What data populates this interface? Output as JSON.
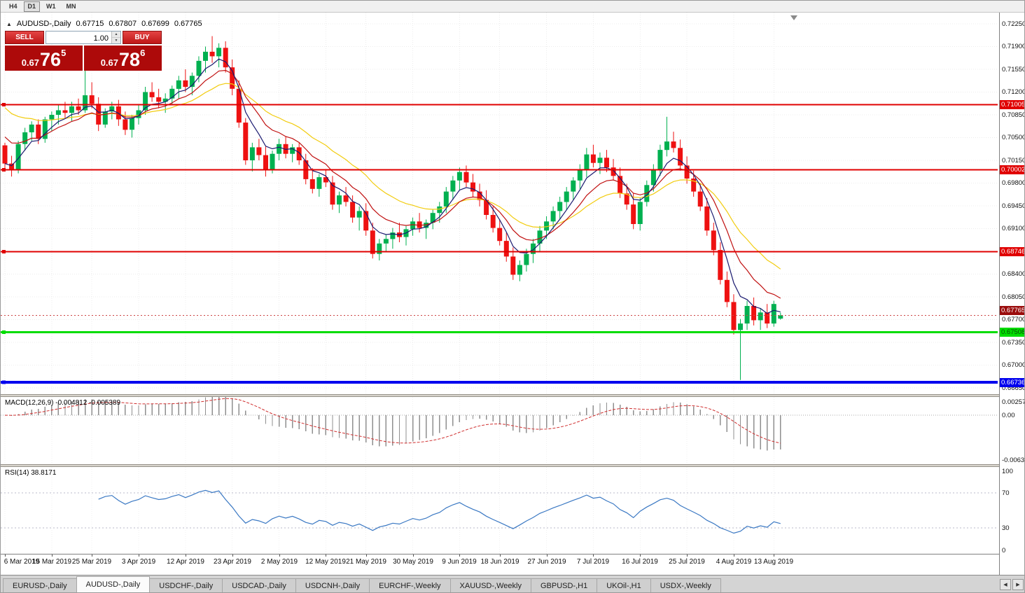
{
  "toolbar": {
    "timeframes": [
      {
        "label": "H4",
        "active": false
      },
      {
        "label": "D1",
        "active": true
      },
      {
        "label": "W1",
        "active": false
      },
      {
        "label": "MN",
        "active": false
      }
    ]
  },
  "chart_header": {
    "collapse_icon": "▲",
    "symbol": "AUDUSD-,Daily",
    "open": "0.67715",
    "high": "0.67807",
    "low": "0.67699",
    "close": "0.67765"
  },
  "trade_panel": {
    "sell_label": "SELL",
    "buy_label": "BUY",
    "volume": "1.00",
    "spin_up": "▲",
    "spin_down": "▼",
    "sell_price": {
      "base": "0.67",
      "big": "76",
      "sup": "5"
    },
    "buy_price": {
      "base": "0.67",
      "big": "78",
      "sup": "6"
    }
  },
  "price_scale": {
    "ticks": [
      "0.72250",
      "0.71900",
      "0.71550",
      "0.71200",
      "0.70850",
      "0.70500",
      "0.70150",
      "0.69800",
      "0.69450",
      "0.69100",
      "0.68750",
      "0.68400",
      "0.68050",
      "0.67700",
      "0.67350",
      "0.67000",
      "0.66650"
    ],
    "current": {
      "label": "0.67765",
      "price": 0.67765,
      "bg": "#9b0d0d",
      "text": "#ffffff"
    }
  },
  "indicators": {
    "macd": {
      "label": "MACD(12,26,9) -0.004812 -0.005389",
      "scale_max": "0.002574",
      "scale_zero": "0.00",
      "scale_min": "-0.006326"
    },
    "rsi": {
      "label": "RSI(14) 38.8171",
      "scale_labels": [
        {
          "v": 100,
          "text": "100"
        },
        {
          "v": 70,
          "text": "70"
        },
        {
          "v": 30,
          "text": "30"
        },
        {
          "v": 0,
          "text": "0"
        }
      ],
      "levels": [
        70,
        30
      ]
    }
  },
  "x_axis": {
    "labels": [
      {
        "text": "6 Mar 2019",
        "i": 0
      },
      {
        "text": "15 Mar 2019",
        "i": 7
      },
      {
        "text": "25 Mar 2019",
        "i": 13
      },
      {
        "text": "3 Apr 2019",
        "i": 20
      },
      {
        "text": "12 Apr 2019",
        "i": 27
      },
      {
        "text": "23 Apr 2019",
        "i": 34
      },
      {
        "text": "2 May 2019",
        "i": 41
      },
      {
        "text": "12 May 2019",
        "i": 48
      },
      {
        "text": "21 May 2019",
        "i": 54
      },
      {
        "text": "30 May 2019",
        "i": 61
      },
      {
        "text": "9 Jun 2019",
        "i": 68
      },
      {
        "text": "18 Jun 2019",
        "i": 74
      },
      {
        "text": "27 Jun 2019",
        "i": 81
      },
      {
        "text": "7 Jul 2019",
        "i": 88
      },
      {
        "text": "16 Jul 2019",
        "i": 95
      },
      {
        "text": "25 Jul 2019",
        "i": 102
      },
      {
        "text": "4 Aug 2019",
        "i": 109
      },
      {
        "text": "13 Aug 2019",
        "i": 115
      }
    ]
  },
  "tabs": [
    {
      "label": "EURUSD-,Daily",
      "active": false
    },
    {
      "label": "AUDUSD-,Daily",
      "active": true
    },
    {
      "label": "USDCHF-,Daily",
      "active": false
    },
    {
      "label": "USDCAD-,Daily",
      "active": false
    },
    {
      "label": "USDCNH-,Daily",
      "active": false
    },
    {
      "label": "EURCHF-,Weekly",
      "active": false
    },
    {
      "label": "XAUUSD-,Weekly",
      "active": false
    },
    {
      "label": "GBPUSD-,H1",
      "active": false
    },
    {
      "label": "UKOil-,H1",
      "active": false
    },
    {
      "label": "USDX-,Weekly",
      "active": false
    }
  ],
  "ui": {
    "tab_scroll_left": "◀",
    "tab_scroll_right": "▶"
  },
  "chart_data": {
    "type": "candlestick",
    "symbol": "AUDUSD",
    "timeframe": "Daily",
    "ohlc_current": {
      "open": 0.67715,
      "high": 0.67807,
      "low": 0.67699,
      "close": 0.67765
    },
    "style": {
      "up": "#00b050",
      "down": "#ee1111",
      "background": "#ffffff",
      "bid_line": "#cc4444"
    },
    "ma": [
      {
        "period": 20,
        "seed": 0.7105,
        "color": "#f2cc0f",
        "name": "slow"
      },
      {
        "period": 10,
        "seed": 0.706,
        "color": "#c01010",
        "name": "medium"
      },
      {
        "period": 5,
        "seed": 0.701,
        "color": "#1a1a70",
        "name": "fast"
      }
    ],
    "hlines": [
      {
        "price": 0.71005,
        "label": "0.71005",
        "color": "#e00000",
        "text": "#ffffff",
        "width": 2
      },
      {
        "price": 0.70002,
        "label": "0.70002",
        "color": "#e00000",
        "text": "#ffffff",
        "width": 2
      },
      {
        "price": 0.68746,
        "label": "0.68746",
        "color": "#e00000",
        "text": "#ffffff",
        "width": 2
      },
      {
        "price": 0.67508,
        "label": "0.67508",
        "color": "#00dd00",
        "text": "#074d07",
        "width": 3
      },
      {
        "price": 0.66736,
        "label": "0.66736",
        "color": "#0000ee",
        "text": "#ffffff",
        "width": 4
      }
    ],
    "macd": {
      "fast": 12,
      "slow": 26,
      "signal": 9,
      "current": -0.004812,
      "current_signal": -0.005389
    },
    "rsi": {
      "period": 14,
      "current": 38.8171
    },
    "candles": [
      [
        0.7038,
        0.7042,
        0.7003,
        0.701
      ],
      [
        0.701,
        0.7022,
        0.699,
        0.7
      ],
      [
        0.7,
        0.7045,
        0.6995,
        0.704
      ],
      [
        0.704,
        0.7065,
        0.703,
        0.7058
      ],
      [
        0.7058,
        0.7075,
        0.7045,
        0.707
      ],
      [
        0.707,
        0.7078,
        0.704,
        0.7048
      ],
      [
        0.7048,
        0.7082,
        0.7042,
        0.7078
      ],
      [
        0.7078,
        0.709,
        0.706,
        0.7085
      ],
      [
        0.7085,
        0.71,
        0.707,
        0.7092
      ],
      [
        0.7092,
        0.7105,
        0.708,
        0.7088
      ],
      [
        0.7088,
        0.7105,
        0.7075,
        0.7098
      ],
      [
        0.7098,
        0.711,
        0.7085,
        0.7092
      ],
      [
        0.7092,
        0.7168,
        0.7088,
        0.7115
      ],
      [
        0.7115,
        0.7135,
        0.7095,
        0.7102
      ],
      [
        0.7102,
        0.7112,
        0.706,
        0.707
      ],
      [
        0.707,
        0.7095,
        0.7065,
        0.709
      ],
      [
        0.709,
        0.7105,
        0.7078,
        0.7098
      ],
      [
        0.7098,
        0.7108,
        0.7068,
        0.7078
      ],
      [
        0.7078,
        0.709,
        0.7054,
        0.7062
      ],
      [
        0.7062,
        0.7085,
        0.705,
        0.708
      ],
      [
        0.708,
        0.71,
        0.707,
        0.7092
      ],
      [
        0.7092,
        0.7128,
        0.7085,
        0.712
      ],
      [
        0.712,
        0.7135,
        0.7105,
        0.7112
      ],
      [
        0.7112,
        0.7125,
        0.7095,
        0.7105
      ],
      [
        0.7105,
        0.7118,
        0.7088,
        0.711
      ],
      [
        0.711,
        0.713,
        0.71,
        0.7125
      ],
      [
        0.7125,
        0.7145,
        0.711,
        0.7138
      ],
      [
        0.7138,
        0.7155,
        0.712,
        0.7128
      ],
      [
        0.7128,
        0.715,
        0.7115,
        0.7145
      ],
      [
        0.7145,
        0.7175,
        0.7135,
        0.7168
      ],
      [
        0.7168,
        0.719,
        0.715,
        0.7182
      ],
      [
        0.7182,
        0.7206,
        0.7165,
        0.7175
      ],
      [
        0.7175,
        0.7195,
        0.7158,
        0.7188
      ],
      [
        0.7188,
        0.7198,
        0.715,
        0.7158
      ],
      [
        0.7158,
        0.717,
        0.7115,
        0.7125
      ],
      [
        0.7125,
        0.7138,
        0.7065,
        0.7073
      ],
      [
        0.7073,
        0.708,
        0.7008,
        0.7015
      ],
      [
        0.7015,
        0.7042,
        0.6998,
        0.7035
      ],
      [
        0.7035,
        0.7048,
        0.7015,
        0.7023
      ],
      [
        0.7023,
        0.7036,
        0.699,
        0.7
      ],
      [
        0.7,
        0.703,
        0.6995,
        0.7025
      ],
      [
        0.7025,
        0.7048,
        0.7015,
        0.704
      ],
      [
        0.704,
        0.7052,
        0.7018,
        0.7025
      ],
      [
        0.7025,
        0.704,
        0.7012,
        0.7035
      ],
      [
        0.7035,
        0.7042,
        0.7008,
        0.7015
      ],
      [
        0.7015,
        0.7025,
        0.6978,
        0.6986
      ],
      [
        0.6986,
        0.7003,
        0.6964,
        0.6971
      ],
      [
        0.6971,
        0.6994,
        0.6959,
        0.6989
      ],
      [
        0.6989,
        0.7001,
        0.6974,
        0.6981
      ],
      [
        0.6981,
        0.6991,
        0.6939,
        0.6947
      ],
      [
        0.6947,
        0.6967,
        0.6934,
        0.6961
      ],
      [
        0.6961,
        0.6974,
        0.6944,
        0.6951
      ],
      [
        0.6951,
        0.6961,
        0.6919,
        0.6927
      ],
      [
        0.6927,
        0.6944,
        0.6907,
        0.6937
      ],
      [
        0.6937,
        0.6949,
        0.6899,
        0.6907
      ],
      [
        0.6907,
        0.6919,
        0.6864,
        0.6871
      ],
      [
        0.6871,
        0.6894,
        0.6861,
        0.6887
      ],
      [
        0.6887,
        0.6901,
        0.6874,
        0.6894
      ],
      [
        0.6894,
        0.6911,
        0.6879,
        0.6904
      ],
      [
        0.6904,
        0.6919,
        0.6889,
        0.6897
      ],
      [
        0.6897,
        0.6914,
        0.6884,
        0.6909
      ],
      [
        0.6909,
        0.6927,
        0.6899,
        0.6921
      ],
      [
        0.6921,
        0.6934,
        0.6904,
        0.6911
      ],
      [
        0.6911,
        0.6924,
        0.6894,
        0.6919
      ],
      [
        0.6919,
        0.6939,
        0.6909,
        0.6934
      ],
      [
        0.6934,
        0.6951,
        0.6919,
        0.6944
      ],
      [
        0.6944,
        0.6974,
        0.6934,
        0.6967
      ],
      [
        0.6967,
        0.6991,
        0.6954,
        0.6984
      ],
      [
        0.6984,
        0.7004,
        0.6969,
        0.6997
      ],
      [
        0.6997,
        0.7007,
        0.6974,
        0.6981
      ],
      [
        0.6981,
        0.6994,
        0.6959,
        0.6967
      ],
      [
        0.6967,
        0.6979,
        0.6944,
        0.6954
      ],
      [
        0.6954,
        0.6969,
        0.6924,
        0.6931
      ],
      [
        0.6931,
        0.6944,
        0.6904,
        0.6911
      ],
      [
        0.6911,
        0.6924,
        0.6884,
        0.6891
      ],
      [
        0.6891,
        0.6904,
        0.6859,
        0.6867
      ],
      [
        0.6867,
        0.6881,
        0.6831,
        0.6839
      ],
      [
        0.6839,
        0.6861,
        0.6829,
        0.6854
      ],
      [
        0.6854,
        0.6879,
        0.6844,
        0.6871
      ],
      [
        0.6871,
        0.6894,
        0.6857,
        0.6887
      ],
      [
        0.6887,
        0.6914,
        0.6874,
        0.6907
      ],
      [
        0.6907,
        0.6929,
        0.6894,
        0.6921
      ],
      [
        0.6921,
        0.6944,
        0.6909,
        0.6937
      ],
      [
        0.6937,
        0.6959,
        0.6924,
        0.6951
      ],
      [
        0.6951,
        0.6974,
        0.6939,
        0.6967
      ],
      [
        0.6967,
        0.6989,
        0.6954,
        0.6984
      ],
      [
        0.6984,
        0.7009,
        0.6971,
        0.7001
      ],
      [
        0.7001,
        0.7034,
        0.6989,
        0.7024
      ],
      [
        0.7024,
        0.7039,
        0.7004,
        0.7011
      ],
      [
        0.7011,
        0.7027,
        0.6994,
        0.7019
      ],
      [
        0.7019,
        0.7031,
        0.6997,
        0.7004
      ],
      [
        0.7004,
        0.7017,
        0.6984,
        0.6991
      ],
      [
        0.6991,
        0.7004,
        0.6957,
        0.6964
      ],
      [
        0.6964,
        0.6979,
        0.6939,
        0.6947
      ],
      [
        0.6947,
        0.6964,
        0.6909,
        0.6917
      ],
      [
        0.6917,
        0.6957,
        0.6907,
        0.6951
      ],
      [
        0.6951,
        0.6984,
        0.6944,
        0.6977
      ],
      [
        0.6977,
        0.7009,
        0.6967,
        0.7001
      ],
      [
        0.7001,
        0.7039,
        0.6991,
        0.7031
      ],
      [
        0.7031,
        0.7082,
        0.7021,
        0.7044
      ],
      [
        0.7044,
        0.7059,
        0.7027,
        0.7034
      ],
      [
        0.7034,
        0.7047,
        0.6999,
        0.7007
      ],
      [
        0.7007,
        0.7021,
        0.6979,
        0.6987
      ],
      [
        0.6987,
        0.6999,
        0.6959,
        0.6967
      ],
      [
        0.6967,
        0.6979,
        0.6937,
        0.6944
      ],
      [
        0.6944,
        0.6957,
        0.6899,
        0.6907
      ],
      [
        0.6907,
        0.6919,
        0.6869,
        0.6877
      ],
      [
        0.6877,
        0.6889,
        0.6824,
        0.6831
      ],
      [
        0.6831,
        0.6844,
        0.6789,
        0.6797
      ],
      [
        0.6797,
        0.6809,
        0.6747,
        0.6754
      ],
      [
        0.6754,
        0.6771,
        0.6677,
        0.6764
      ],
      [
        0.6764,
        0.6799,
        0.6754,
        0.6791
      ],
      [
        0.6791,
        0.6804,
        0.6761,
        0.6769
      ],
      [
        0.6769,
        0.6787,
        0.6754,
        0.6781
      ],
      [
        0.6781,
        0.6794,
        0.6757,
        0.6764
      ],
      [
        0.6764,
        0.6799,
        0.6759,
        0.6794
      ],
      [
        0.67715,
        0.67807,
        0.67699,
        0.67765
      ]
    ]
  }
}
